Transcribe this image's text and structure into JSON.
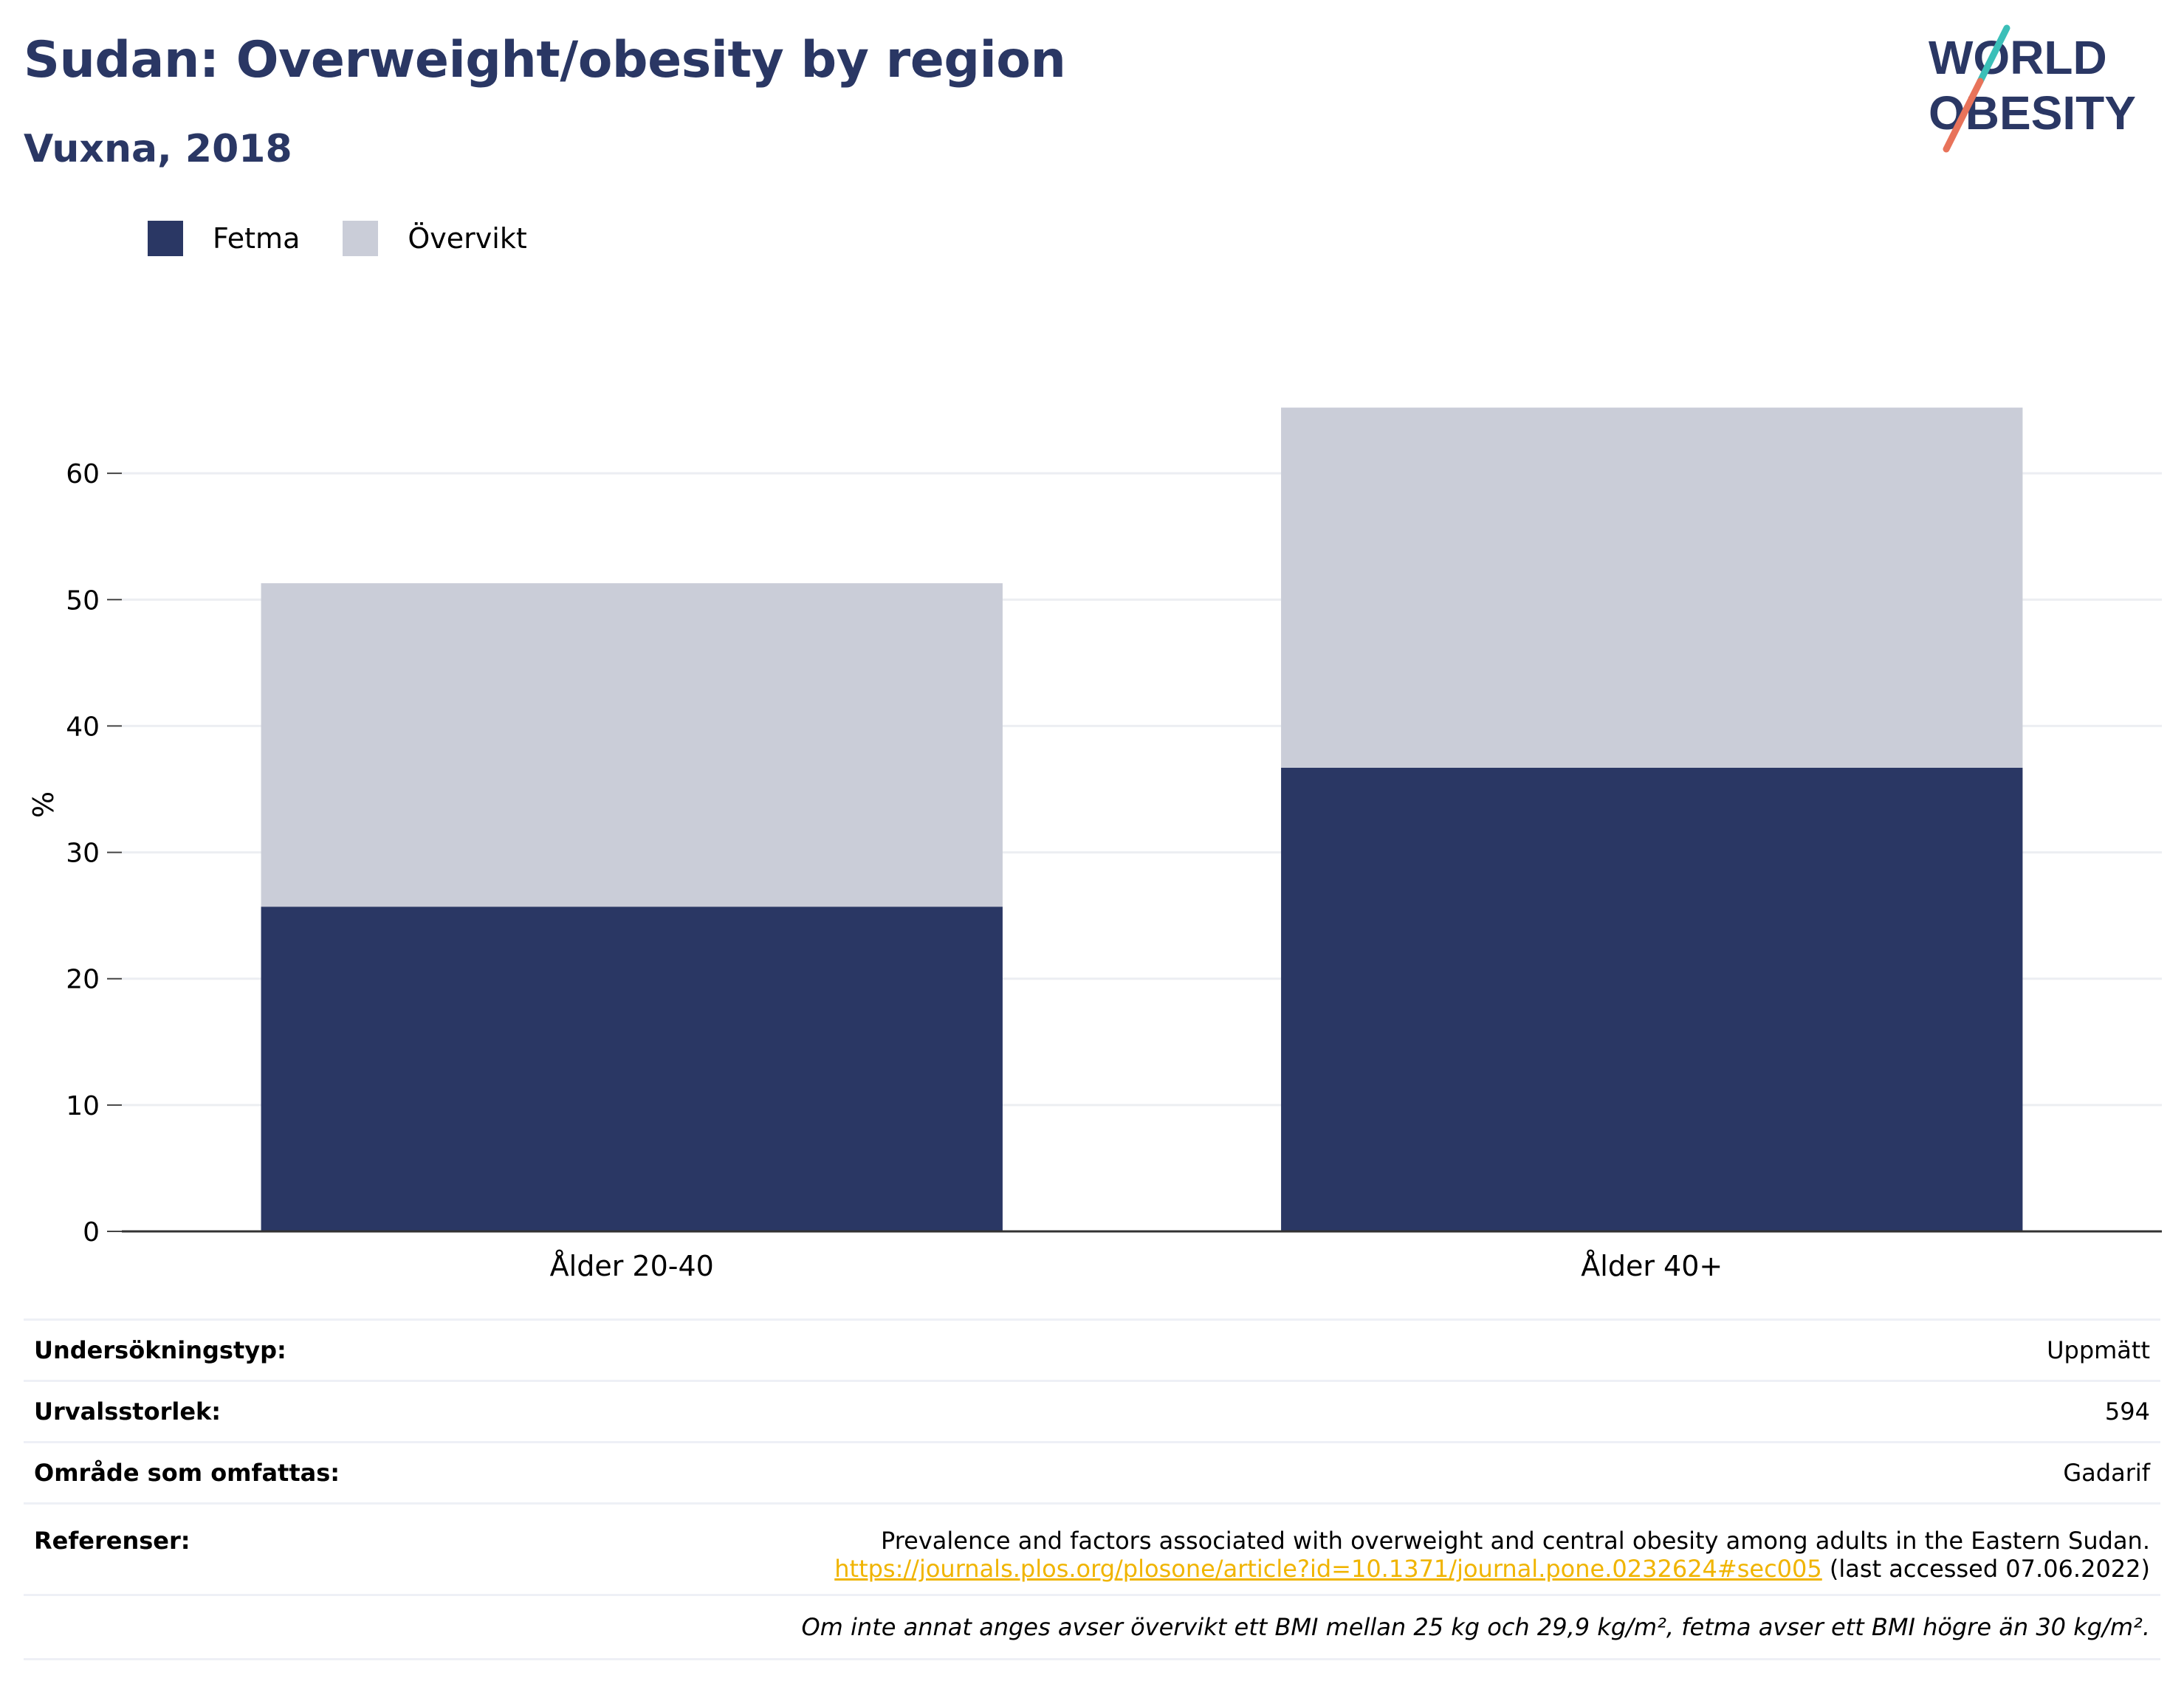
{
  "header": {
    "title": "Sudan: Overweight/obesity by region",
    "subtitle": "Vuxna, 2018"
  },
  "logo": {
    "line1": "WORLD",
    "line2": "OBESITY",
    "colors": {
      "text": "#2a3764",
      "slash_teal": "#3bbfb8",
      "slash_coral": "#e8735a"
    }
  },
  "legend": [
    {
      "label": "Fetma",
      "color": "#2a3764"
    },
    {
      "label": "Övervikt",
      "color": "#cacdd8"
    }
  ],
  "chart_data": {
    "type": "bar",
    "stacked": true,
    "categories": [
      "Ålder 20-40",
      "Ålder 40+"
    ],
    "series": [
      {
        "name": "Fetma",
        "color": "#2a3764",
        "values": [
          25.7,
          36.7
        ]
      },
      {
        "name": "Övervikt",
        "color": "#cacdd8",
        "values": [
          25.6,
          28.5
        ]
      }
    ],
    "ylabel": "%",
    "xlabel": "",
    "ylim": [
      0,
      70
    ],
    "yticks": [
      0,
      10,
      20,
      30,
      40,
      50,
      60
    ],
    "grid": true,
    "legend_position": "top-left"
  },
  "info": {
    "rows": [
      {
        "label": "Undersökningstyp:",
        "value": "Uppmätt"
      },
      {
        "label": "Urvalsstorlek:",
        "value": "594"
      },
      {
        "label": "Område som omfattas:",
        "value": "Gadarif"
      }
    ],
    "references": {
      "label": "Referenser:",
      "text": "Prevalence and factors associated with overweight and central obesity among adults in the Eastern Sudan.",
      "link": "https://journals.plos.org/plosone/article?id=10.1371/journal.pone.0232624#sec005",
      "accessed": " (last accessed 07.06.2022)"
    },
    "note": "Om inte annat anges avser övervikt ett BMI mellan 25 kg och 29,9 kg/m², fetma avser ett BMI högre än 30 kg/m²."
  }
}
